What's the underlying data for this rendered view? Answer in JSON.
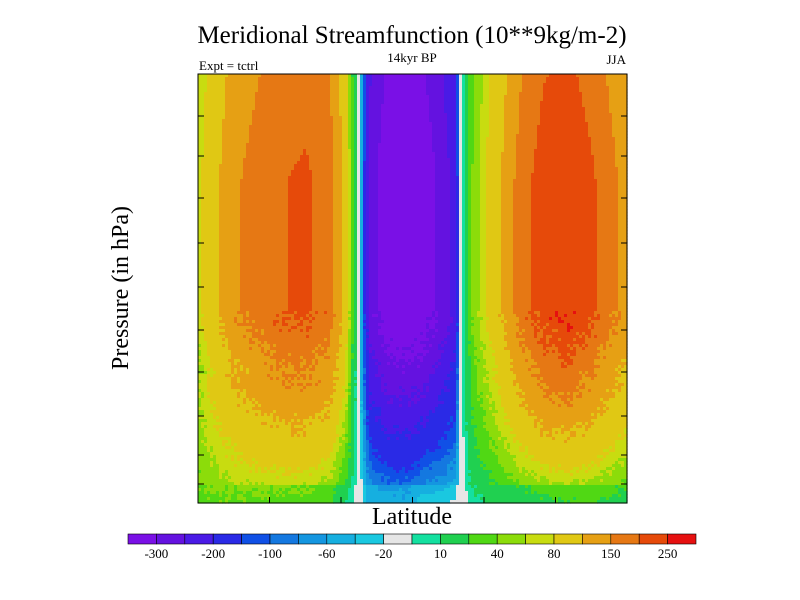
{
  "chart_data": {
    "type": "heatmap",
    "title": "Meridional Streamfunction (10**9kg/m-2)",
    "subtitle": "14kyr BP",
    "left_label": "Expt = tctrl",
    "right_label": "JJA",
    "xlabel": "Latitude",
    "ylabel": "Pressure (in hPa)",
    "colorbar": {
      "levels": [
        -300,
        -250,
        -200,
        -150,
        -100,
        -80,
        -60,
        -40,
        -20,
        -10,
        10,
        20,
        40,
        60,
        80,
        100,
        150,
        200,
        250,
        300
      ],
      "tick_labels": [
        "-300",
        "-200",
        "-100",
        "-60",
        "-20",
        "10",
        "40",
        "80",
        "150",
        "250"
      ],
      "colors": [
        "#7a10e6",
        "#6412e0",
        "#4a1ae6",
        "#2a2ae6",
        "#1050e6",
        "#1478e0",
        "#1496e0",
        "#16afe0",
        "#1ac8e0",
        "#e6e6e6",
        "#14e0a0",
        "#20d050",
        "#50d814",
        "#8cdc0a",
        "#c8dc10",
        "#e0c814",
        "#e6a014",
        "#e67814",
        "#e64a0a",
        "#e61010"
      ]
    },
    "columns": [
      {
        "lat": -90,
        "t": 90,
        "bot": 55,
        "s": 1
      },
      {
        "lat": -75,
        "t": 190,
        "bot": 50,
        "s": 1
      },
      {
        "lat": -60,
        "t": 240,
        "bot": 45,
        "s": 1
      },
      {
        "lat": -45,
        "t": 260,
        "bot": 40,
        "s": 1
      },
      {
        "lat": -35,
        "t": 230,
        "bot": 35,
        "s": 1
      },
      {
        "lat": -28,
        "t": 130,
        "bot": 15,
        "s": 1
      },
      {
        "lat": -25,
        "t": 40,
        "bot": 12,
        "s": 1
      },
      {
        "lat": -22,
        "t": 0,
        "bot": 0,
        "s": -1
      },
      {
        "lat": -18,
        "t": 220,
        "bot": 15,
        "s": -1
      },
      {
        "lat": -10,
        "t": 300,
        "bot": 18,
        "s": -1
      },
      {
        "lat": -2,
        "t": 300,
        "bot": 20,
        "s": -1
      },
      {
        "lat": 3,
        "t": 300,
        "bot": 0,
        "s": -1
      },
      {
        "lat": 10,
        "t": 250,
        "bot": 0,
        "s": -1
      },
      {
        "lat": 18,
        "t": 180,
        "bot": 0,
        "s": -1
      },
      {
        "lat": 20,
        "t": 0,
        "bot": 0,
        "s": 1
      },
      {
        "lat": 25,
        "t": 60,
        "bot": 15,
        "s": 1
      },
      {
        "lat": 35,
        "t": 130,
        "bot": 18,
        "s": 1
      },
      {
        "lat": 45,
        "t": 220,
        "bot": 20,
        "s": 1
      },
      {
        "lat": 55,
        "t": 280,
        "bot": 22,
        "s": 1
      },
      {
        "lat": 65,
        "t": 300,
        "bot": 25,
        "s": 1
      },
      {
        "lat": 75,
        "t": 260,
        "bot": 30,
        "s": 1
      },
      {
        "lat": 90,
        "t": 180,
        "bot": 25,
        "s": 1
      }
    ]
  }
}
